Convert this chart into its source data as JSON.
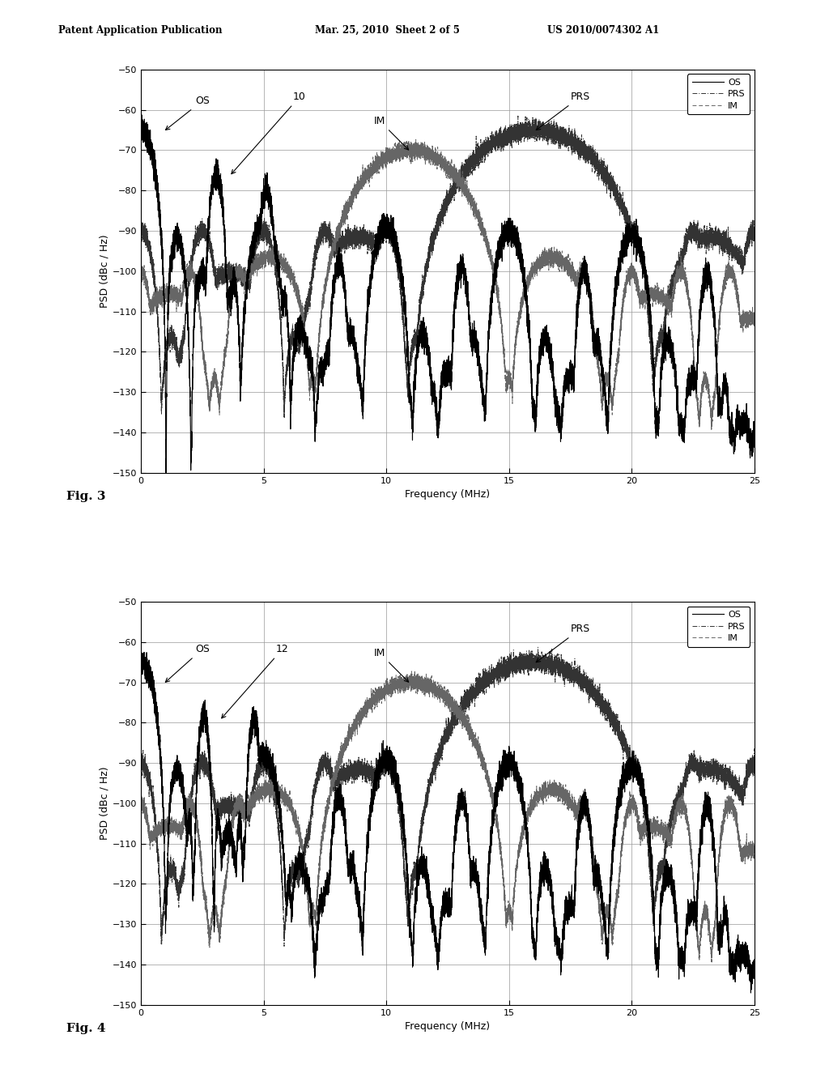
{
  "header_left": "Patent Application Publication",
  "header_center": "Mar. 25, 2010  Sheet 2 of 5",
  "header_right": "US 2010/0074302 A1",
  "xlabel": "Frequency (MHz)",
  "ylabel": "PSD (dBc / Hz)",
  "xlim": [
    0,
    25
  ],
  "ylim": [
    -150,
    -50
  ],
  "yticks": [
    -150,
    -140,
    -130,
    -120,
    -110,
    -100,
    -90,
    -80,
    -70,
    -60,
    -50
  ],
  "xticks": [
    0,
    5,
    10,
    15,
    20,
    25
  ],
  "bg_color": "#ffffff"
}
